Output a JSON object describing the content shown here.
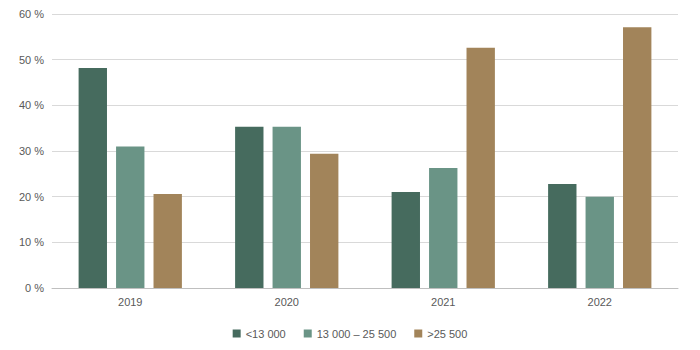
{
  "chart_data": {
    "type": "bar",
    "categories": [
      "2019",
      "2020",
      "2021",
      "2022"
    ],
    "series": [
      {
        "name": "<13 000",
        "color": "#466b5e",
        "values": [
          48.2,
          35.3,
          21.0,
          22.8
        ]
      },
      {
        "name": "13 000 – 25 500",
        "color": "#6a9486",
        "values": [
          31.0,
          35.3,
          26.3,
          20.0
        ]
      },
      {
        "name": ">25 500",
        "color": "#a2845a",
        "values": [
          20.6,
          29.4,
          52.6,
          57.1
        ]
      }
    ],
    "ylim": [
      0,
      60
    ],
    "yticks": [
      {
        "value": 0,
        "label": "0 %"
      },
      {
        "value": 10,
        "label": "10 %"
      },
      {
        "value": 20,
        "label": "20 %"
      },
      {
        "value": 30,
        "label": "30 %"
      },
      {
        "value": 40,
        "label": "40 %"
      },
      {
        "value": 50,
        "label": "50 %"
      },
      {
        "value": 60,
        "label": "60 %"
      }
    ],
    "grid": true,
    "legend": "bottom"
  }
}
